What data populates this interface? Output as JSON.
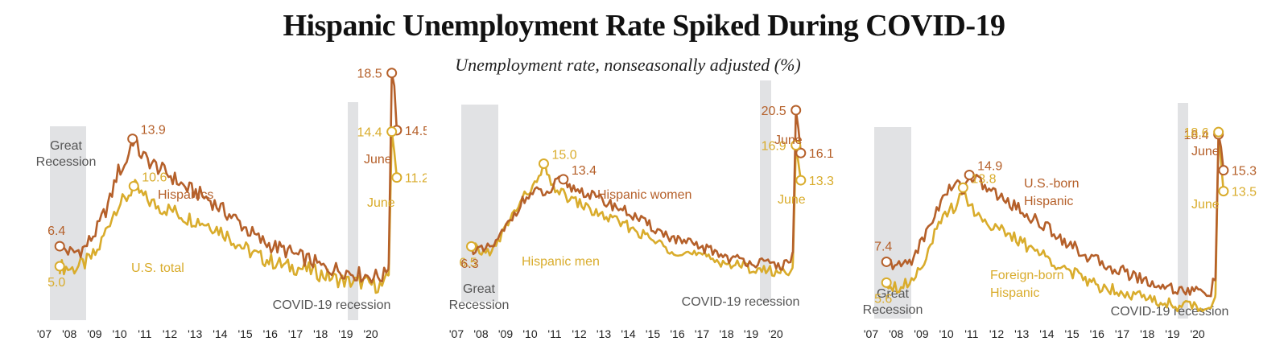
{
  "title": "Hispanic Unemployment Rate Spiked During COVID-19",
  "subtitle": "Unemployment rate, nonseasonally adjusted (%)",
  "colors": {
    "dark": "#b5602a",
    "light": "#d9ac2c",
    "recession": "#e1e2e4",
    "label": "#555555"
  },
  "chart_data": [
    {
      "type": "line",
      "x_ticks": [
        "'07",
        "'08",
        "'09",
        "'10",
        "'11",
        "'12",
        "'13",
        "'14",
        "'15",
        "'16",
        "'17",
        "'18",
        "'19",
        "'20"
      ],
      "ylim": [
        0,
        22
      ],
      "grid": false,
      "recession_labels": {
        "great": [
          "Great",
          "Recession"
        ],
        "covid": "COVID-19 recession"
      },
      "june_word": "June",
      "series": [
        {
          "name": "Hispanics",
          "color": "dark",
          "name_lines": [
            "Hispanics"
          ],
          "points": [
            [
              2007.0,
              6.4
            ],
            [
              2007.5,
              5.9
            ],
            [
              2008.0,
              6.3
            ],
            [
              2008.5,
              7.6
            ],
            [
              2009.0,
              9.6
            ],
            [
              2009.3,
              11.6
            ],
            [
              2009.6,
              12.0
            ],
            [
              2009.9,
              13.9
            ],
            [
              2010.2,
              12.9
            ],
            [
              2010.5,
              12.4
            ],
            [
              2011.0,
              11.8
            ],
            [
              2011.5,
              11.2
            ],
            [
              2012.0,
              10.5
            ],
            [
              2012.5,
              10.1
            ],
            [
              2013.0,
              9.6
            ],
            [
              2013.5,
              8.9
            ],
            [
              2014.0,
              8.3
            ],
            [
              2014.5,
              7.5
            ],
            [
              2015.0,
              6.8
            ],
            [
              2015.5,
              6.4
            ],
            [
              2016.0,
              6.1
            ],
            [
              2016.5,
              5.7
            ],
            [
              2017.0,
              5.4
            ],
            [
              2017.5,
              4.9
            ],
            [
              2018.0,
              4.8
            ],
            [
              2018.5,
              4.6
            ],
            [
              2019.0,
              4.4
            ],
            [
              2019.5,
              4.3
            ],
            [
              2019.9,
              4.3
            ],
            [
              2020.1,
              5.2
            ],
            [
              2020.22,
              18.5
            ],
            [
              2020.32,
              17.6
            ],
            [
              2020.42,
              14.5
            ]
          ],
          "labels": [
            {
              "x": 2007.0,
              "y": 6.4,
              "text": "6.4"
            },
            {
              "x": 2009.9,
              "y": 13.9,
              "text": "13.9"
            },
            {
              "x": 2020.22,
              "y": 18.5,
              "text": "18.5"
            },
            {
              "x": 2020.42,
              "y": 14.5,
              "text": "14.5"
            }
          ]
        },
        {
          "name": "U.S. total",
          "color": "light",
          "name_lines": [
            "U.S. total"
          ],
          "points": [
            [
              2007.0,
              5.0
            ],
            [
              2007.5,
              4.8
            ],
            [
              2008.0,
              5.2
            ],
            [
              2008.5,
              6.0
            ],
            [
              2009.0,
              8.2
            ],
            [
              2009.3,
              9.3
            ],
            [
              2009.6,
              9.6
            ],
            [
              2009.95,
              10.6
            ],
            [
              2010.3,
              9.9
            ],
            [
              2010.6,
              9.5
            ],
            [
              2011.0,
              9.1
            ],
            [
              2011.5,
              8.9
            ],
            [
              2012.0,
              8.4
            ],
            [
              2012.5,
              8.2
            ],
            [
              2013.0,
              7.9
            ],
            [
              2013.5,
              7.4
            ],
            [
              2014.0,
              6.7
            ],
            [
              2014.5,
              6.1
            ],
            [
              2015.0,
              5.6
            ],
            [
              2015.5,
              5.3
            ],
            [
              2016.0,
              5.0
            ],
            [
              2016.5,
              4.9
            ],
            [
              2017.0,
              4.7
            ],
            [
              2017.5,
              4.4
            ],
            [
              2018.0,
              4.1
            ],
            [
              2018.5,
              3.9
            ],
            [
              2019.0,
              3.9
            ],
            [
              2019.5,
              3.7
            ],
            [
              2019.9,
              3.6
            ],
            [
              2020.1,
              4.4
            ],
            [
              2020.22,
              14.4
            ],
            [
              2020.32,
              13.0
            ],
            [
              2020.42,
              11.2
            ]
          ],
          "labels": [
            {
              "x": 2007.0,
              "y": 5.0,
              "text": "5.0"
            },
            {
              "x": 2009.95,
              "y": 10.6,
              "text": "10.6"
            },
            {
              "x": 2020.22,
              "y": 14.4,
              "text": "14.4"
            },
            {
              "x": 2020.42,
              "y": 11.2,
              "text": "11.2"
            }
          ]
        }
      ]
    },
    {
      "type": "line",
      "x_ticks": [
        "'07",
        "'08",
        "'09",
        "'10",
        "'11",
        "'12",
        "'13",
        "'14",
        "'15",
        "'16",
        "'17",
        "'18",
        "'19",
        "'20"
      ],
      "ylim": [
        0,
        22
      ],
      "grid": false,
      "recession_labels": {
        "great": [
          "Great",
          "Recession"
        ],
        "covid": "COVID-19 recession"
      },
      "june_word": "June",
      "series": [
        {
          "name": "Hispanic women",
          "color": "dark",
          "name_lines": [
            "Hispanic women"
          ],
          "points": [
            [
              2007.0,
              6.3
            ],
            [
              2007.5,
              6.0
            ],
            [
              2008.0,
              6.8
            ],
            [
              2008.5,
              8.8
            ],
            [
              2009.0,
              10.9
            ],
            [
              2009.4,
              11.8
            ],
            [
              2009.8,
              12.2
            ],
            [
              2010.1,
              11.7
            ],
            [
              2010.4,
              12.9
            ],
            [
              2010.75,
              13.4
            ],
            [
              2011.0,
              12.6
            ],
            [
              2011.5,
              12.2
            ],
            [
              2012.0,
              11.6
            ],
            [
              2012.5,
              11.0
            ],
            [
              2013.0,
              10.5
            ],
            [
              2013.5,
              9.8
            ],
            [
              2014.0,
              9.0
            ],
            [
              2014.5,
              8.3
            ],
            [
              2015.0,
              7.6
            ],
            [
              2015.5,
              7.0
            ],
            [
              2016.0,
              6.7
            ],
            [
              2016.5,
              6.3
            ],
            [
              2017.0,
              5.9
            ],
            [
              2017.5,
              5.3
            ],
            [
              2018.0,
              5.1
            ],
            [
              2018.5,
              4.9
            ],
            [
              2019.0,
              4.7
            ],
            [
              2019.5,
              4.6
            ],
            [
              2019.9,
              4.6
            ],
            [
              2020.1,
              5.9
            ],
            [
              2020.22,
              20.5
            ],
            [
              2020.32,
              18.6
            ],
            [
              2020.42,
              16.1
            ]
          ],
          "labels": [
            {
              "x": 2010.75,
              "y": 13.4,
              "text": "13.4"
            },
            {
              "x": 2020.22,
              "y": 20.5,
              "text": "20.5"
            },
            {
              "x": 2020.42,
              "y": 16.1,
              "text": "16.1"
            }
          ]
        },
        {
          "name": "Hispanic men",
          "color": "light",
          "name_lines": [
            "Hispanic men"
          ],
          "points": [
            [
              2007.0,
              6.5
            ],
            [
              2007.5,
              5.8
            ],
            [
              2008.0,
              6.4
            ],
            [
              2008.5,
              9.0
            ],
            [
              2009.0,
              11.0
            ],
            [
              2009.35,
              12.3
            ],
            [
              2009.7,
              13.0
            ],
            [
              2009.95,
              15.0
            ],
            [
              2010.2,
              13.0
            ],
            [
              2010.6,
              12.1
            ],
            [
              2011.0,
              11.4
            ],
            [
              2011.5,
              10.8
            ],
            [
              2012.0,
              10.0
            ],
            [
              2012.5,
              9.5
            ],
            [
              2013.0,
              9.0
            ],
            [
              2013.5,
              8.4
            ],
            [
              2014.0,
              7.7
            ],
            [
              2014.5,
              7.0
            ],
            [
              2015.0,
              6.3
            ],
            [
              2015.5,
              6.0
            ],
            [
              2016.0,
              5.7
            ],
            [
              2016.5,
              5.4
            ],
            [
              2017.0,
              5.1
            ],
            [
              2017.5,
              4.7
            ],
            [
              2018.0,
              4.5
            ],
            [
              2018.5,
              4.2
            ],
            [
              2019.0,
              4.0
            ],
            [
              2019.5,
              3.9
            ],
            [
              2019.9,
              3.9
            ],
            [
              2020.1,
              4.9
            ],
            [
              2020.22,
              16.9
            ],
            [
              2020.32,
              15.1
            ],
            [
              2020.42,
              13.3
            ]
          ],
          "labels": [
            {
              "x": 2007.0,
              "y": 6.5,
              "text": "6.5"
            },
            {
              "x": 2009.95,
              "y": 15.0,
              "text": "15.0"
            },
            {
              "x": 2020.22,
              "y": 16.9,
              "text": "16.9"
            },
            {
              "x": 2020.42,
              "y": 13.3,
              "text": "13.3"
            }
          ]
        }
      ],
      "extra_labels": [
        {
          "text": "6.3",
          "color": "dark",
          "x": 2007.0,
          "y": 6.3
        }
      ]
    },
    {
      "type": "line",
      "x_ticks": [
        "'07",
        "'08",
        "'09",
        "'10",
        "'11",
        "'12",
        "'13",
        "'14",
        "'15",
        "'16",
        "'17",
        "'18",
        "'19",
        "'20"
      ],
      "ylim": [
        0,
        22
      ],
      "grid": false,
      "recession_labels": {
        "great": [
          "Great",
          "Recession"
        ],
        "covid": "COVID-19 recession"
      },
      "june_word": "June",
      "series": [
        {
          "name": "U.S.-born Hispanic",
          "color": "dark",
          "name_lines": [
            "U.S.-born",
            "Hispanic"
          ],
          "points": [
            [
              2007.0,
              7.4
            ],
            [
              2007.5,
              7.0
            ],
            [
              2008.0,
              7.6
            ],
            [
              2008.5,
              9.5
            ],
            [
              2009.0,
              11.9
            ],
            [
              2009.4,
              13.4
            ],
            [
              2009.8,
              14.2
            ],
            [
              2010.1,
              13.6
            ],
            [
              2010.3,
              14.9
            ],
            [
              2010.7,
              14.3
            ],
            [
              2011.0,
              13.8
            ],
            [
              2011.5,
              13.0
            ],
            [
              2012.0,
              12.4
            ],
            [
              2012.5,
              11.6
            ],
            [
              2013.0,
              10.9
            ],
            [
              2013.5,
              10.2
            ],
            [
              2014.0,
              9.4
            ],
            [
              2014.5,
              8.6
            ],
            [
              2015.0,
              7.9
            ],
            [
              2015.5,
              7.3
            ],
            [
              2016.0,
              6.9
            ],
            [
              2016.5,
              6.5
            ],
            [
              2017.0,
              6.1
            ],
            [
              2017.5,
              5.6
            ],
            [
              2018.0,
              5.3
            ],
            [
              2018.5,
              5.1
            ],
            [
              2019.0,
              4.9
            ],
            [
              2019.5,
              4.8
            ],
            [
              2019.9,
              4.8
            ],
            [
              2020.1,
              6.0
            ],
            [
              2020.22,
              18.4
            ],
            [
              2020.32,
              17.3
            ],
            [
              2020.42,
              15.3
            ]
          ],
          "labels": [
            {
              "x": 2007.0,
              "y": 7.4,
              "text": "7.4"
            },
            {
              "x": 2010.3,
              "y": 14.9,
              "text": "14.9"
            },
            {
              "x": 2020.22,
              "y": 18.4,
              "text": "18.4"
            },
            {
              "x": 2020.42,
              "y": 15.3,
              "text": "15.3"
            }
          ]
        },
        {
          "name": "Foreign-born Hispanic",
          "color": "light",
          "name_lines": [
            "Foreign-born",
            "Hispanic"
          ],
          "points": [
            [
              2007.0,
              5.6
            ],
            [
              2007.5,
              5.2
            ],
            [
              2008.0,
              5.8
            ],
            [
              2008.5,
              7.6
            ],
            [
              2009.0,
              10.1
            ],
            [
              2009.4,
              11.6
            ],
            [
              2009.75,
              12.3
            ],
            [
              2010.05,
              13.8
            ],
            [
              2010.4,
              12.0
            ],
            [
              2010.7,
              11.4
            ],
            [
              2011.0,
              10.8
            ],
            [
              2011.5,
              10.2
            ],
            [
              2012.0,
              9.5
            ],
            [
              2012.5,
              8.9
            ],
            [
              2013.0,
              8.3
            ],
            [
              2013.5,
              7.6
            ],
            [
              2014.0,
              7.0
            ],
            [
              2014.5,
              6.3
            ],
            [
              2015.0,
              5.8
            ],
            [
              2015.5,
              5.3
            ],
            [
              2016.0,
              5.1
            ],
            [
              2016.5,
              4.8
            ],
            [
              2017.0,
              4.5
            ],
            [
              2017.5,
              4.1
            ],
            [
              2018.0,
              3.9
            ],
            [
              2018.5,
              3.7
            ],
            [
              2019.0,
              3.6
            ],
            [
              2019.5,
              3.4
            ],
            [
              2019.9,
              3.5
            ],
            [
              2020.1,
              4.6
            ],
            [
              2020.22,
              18.6
            ],
            [
              2020.32,
              16.0
            ],
            [
              2020.42,
              13.5
            ]
          ],
          "labels": [
            {
              "x": 2007.0,
              "y": 5.6,
              "text": "5.6"
            },
            {
              "x": 2010.05,
              "y": 13.8,
              "text": "13.8"
            },
            {
              "x": 2020.22,
              "y": 18.6,
              "text": "18.6"
            },
            {
              "x": 2020.42,
              "y": 13.5,
              "text": "13.5"
            }
          ]
        }
      ]
    }
  ]
}
